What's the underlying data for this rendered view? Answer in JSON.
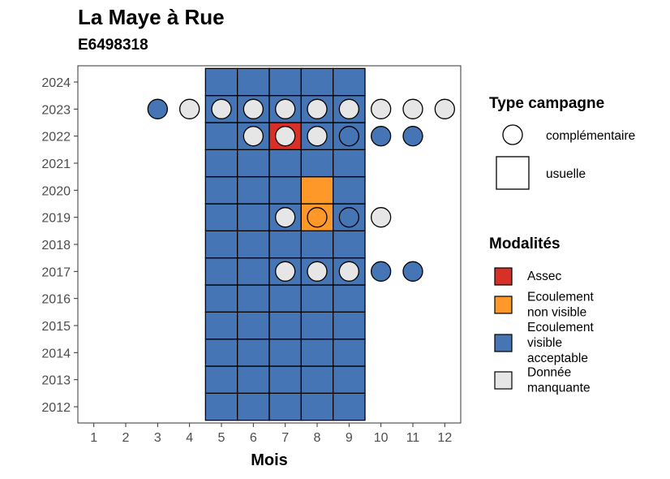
{
  "title": "La Maye à Rue",
  "subtitle": "E6498318",
  "chart_data": {
    "type": "heatmap",
    "xlabel": "Mois",
    "ylabel": "",
    "x_ticks": [
      1,
      2,
      3,
      4,
      5,
      6,
      7,
      8,
      9,
      10,
      11,
      12
    ],
    "y_ticks": [
      2012,
      2013,
      2014,
      2015,
      2016,
      2017,
      2018,
      2019,
      2020,
      2021,
      2022,
      2023,
      2024
    ],
    "xlim": [
      0.5,
      12.5
    ],
    "ylim": [
      2011.4,
      2024.6
    ],
    "grid": false,
    "colors": {
      "Assec": "#d73027",
      "Ecoulement non visible": "#fe9929",
      "Ecoulement visible acceptable": "#4575b4",
      "Donnée manquante": "#e6e6e6"
    },
    "legend_type": {
      "title": "Type campagne",
      "entries": [
        "complémentaire",
        "usuelle"
      ],
      "placement": "right"
    },
    "legend_modalites": {
      "title": "Modalités",
      "entries": [
        {
          "key": "Assec",
          "lines": [
            "Assec"
          ]
        },
        {
          "key": "Ecoulement non visible",
          "lines": [
            "Ecoulement",
            "non visible"
          ]
        },
        {
          "key": "Ecoulement visible acceptable",
          "lines": [
            "Ecoulement",
            "visible",
            "acceptable"
          ]
        },
        {
          "key": "Donnée manquante",
          "lines": [
            "Donnée",
            "manquante"
          ]
        }
      ],
      "placement": "right"
    },
    "usuelle_tiles": [
      {
        "year": 2012,
        "months": [
          5,
          6,
          7,
          8,
          9
        ],
        "values": [
          "Ecoulement visible acceptable",
          "Ecoulement visible acceptable",
          "Ecoulement visible acceptable",
          "Ecoulement visible acceptable",
          "Ecoulement visible acceptable"
        ]
      },
      {
        "year": 2013,
        "months": [
          5,
          6,
          7,
          8,
          9
        ],
        "values": [
          "Ecoulement visible acceptable",
          "Ecoulement visible acceptable",
          "Ecoulement visible acceptable",
          "Ecoulement visible acceptable",
          "Ecoulement visible acceptable"
        ]
      },
      {
        "year": 2014,
        "months": [
          5,
          6,
          7,
          8,
          9
        ],
        "values": [
          "Ecoulement visible acceptable",
          "Ecoulement visible acceptable",
          "Ecoulement visible acceptable",
          "Ecoulement visible acceptable",
          "Ecoulement visible acceptable"
        ]
      },
      {
        "year": 2015,
        "months": [
          5,
          6,
          7,
          8,
          9
        ],
        "values": [
          "Ecoulement visible acceptable",
          "Ecoulement visible acceptable",
          "Ecoulement visible acceptable",
          "Ecoulement visible acceptable",
          "Ecoulement visible acceptable"
        ]
      },
      {
        "year": 2016,
        "months": [
          5,
          6,
          7,
          8,
          9
        ],
        "values": [
          "Ecoulement visible acceptable",
          "Ecoulement visible acceptable",
          "Ecoulement visible acceptable",
          "Ecoulement visible acceptable",
          "Ecoulement visible acceptable"
        ]
      },
      {
        "year": 2017,
        "months": [
          5,
          6,
          7,
          8,
          9
        ],
        "values": [
          "Ecoulement visible acceptable",
          "Ecoulement visible acceptable",
          "Ecoulement visible acceptable",
          "Ecoulement visible acceptable",
          "Ecoulement visible acceptable"
        ]
      },
      {
        "year": 2018,
        "months": [
          5,
          6,
          7,
          8,
          9
        ],
        "values": [
          "Ecoulement visible acceptable",
          "Ecoulement visible acceptable",
          "Ecoulement visible acceptable",
          "Ecoulement visible acceptable",
          "Ecoulement visible acceptable"
        ]
      },
      {
        "year": 2019,
        "months": [
          5,
          6,
          7,
          8,
          9
        ],
        "values": [
          "Ecoulement visible acceptable",
          "Ecoulement visible acceptable",
          "Ecoulement visible acceptable",
          "Ecoulement non visible",
          "Ecoulement visible acceptable"
        ]
      },
      {
        "year": 2020,
        "months": [
          5,
          6,
          7,
          8,
          9
        ],
        "values": [
          "Ecoulement visible acceptable",
          "Ecoulement visible acceptable",
          "Ecoulement visible acceptable",
          "Ecoulement non visible",
          "Ecoulement visible acceptable"
        ]
      },
      {
        "year": 2021,
        "months": [
          5,
          6,
          7,
          8,
          9
        ],
        "values": [
          "Ecoulement visible acceptable",
          "Ecoulement visible acceptable",
          "Ecoulement visible acceptable",
          "Ecoulement visible acceptable",
          "Ecoulement visible acceptable"
        ]
      },
      {
        "year": 2022,
        "months": [
          5,
          6,
          7,
          8,
          9
        ],
        "values": [
          "Ecoulement visible acceptable",
          "Ecoulement visible acceptable",
          "Assec",
          "Ecoulement visible acceptable",
          "Ecoulement visible acceptable"
        ]
      },
      {
        "year": 2023,
        "months": [
          5,
          6,
          7,
          8,
          9
        ],
        "values": [
          "Ecoulement visible acceptable",
          "Ecoulement visible acceptable",
          "Ecoulement visible acceptable",
          "Ecoulement visible acceptable",
          "Ecoulement visible acceptable"
        ]
      },
      {
        "year": 2024,
        "months": [
          5,
          6,
          7,
          8,
          9
        ],
        "values": [
          "Ecoulement visible acceptable",
          "Ecoulement visible acceptable",
          "Ecoulement visible acceptable",
          "Ecoulement visible acceptable",
          "Ecoulement visible acceptable"
        ]
      }
    ],
    "complementaire_points": [
      {
        "year": 2023,
        "month": 3,
        "value": "Ecoulement visible acceptable"
      },
      {
        "year": 2023,
        "month": 4,
        "value": "Donnée manquante"
      },
      {
        "year": 2023,
        "month": 5,
        "value": "Donnée manquante"
      },
      {
        "year": 2023,
        "month": 6,
        "value": "Donnée manquante"
      },
      {
        "year": 2023,
        "month": 7,
        "value": "Donnée manquante"
      },
      {
        "year": 2023,
        "month": 8,
        "value": "Donnée manquante"
      },
      {
        "year": 2023,
        "month": 9,
        "value": "Donnée manquante"
      },
      {
        "year": 2023,
        "month": 10,
        "value": "Donnée manquante"
      },
      {
        "year": 2023,
        "month": 11,
        "value": "Donnée manquante"
      },
      {
        "year": 2023,
        "month": 12,
        "value": "Donnée manquante"
      },
      {
        "year": 2022,
        "month": 6,
        "value": "Donnée manquante"
      },
      {
        "year": 2022,
        "month": 7,
        "value": "Donnée manquante"
      },
      {
        "year": 2022,
        "month": 8,
        "value": "Donnée manquante"
      },
      {
        "year": 2022,
        "month": 9,
        "value": "Ecoulement visible acceptable"
      },
      {
        "year": 2022,
        "month": 10,
        "value": "Ecoulement visible acceptable"
      },
      {
        "year": 2022,
        "month": 11,
        "value": "Ecoulement visible acceptable"
      },
      {
        "year": 2019,
        "month": 7,
        "value": "Donnée manquante"
      },
      {
        "year": 2019,
        "month": 8,
        "value": "Ecoulement non visible"
      },
      {
        "year": 2019,
        "month": 9,
        "value": "Ecoulement visible acceptable"
      },
      {
        "year": 2019,
        "month": 10,
        "value": "Donnée manquante"
      },
      {
        "year": 2017,
        "month": 7,
        "value": "Donnée manquante"
      },
      {
        "year": 2017,
        "month": 8,
        "value": "Donnée manquante"
      },
      {
        "year": 2017,
        "month": 9,
        "value": "Donnée manquante"
      },
      {
        "year": 2017,
        "month": 10,
        "value": "Ecoulement visible acceptable"
      },
      {
        "year": 2017,
        "month": 11,
        "value": "Ecoulement visible acceptable"
      }
    ]
  }
}
